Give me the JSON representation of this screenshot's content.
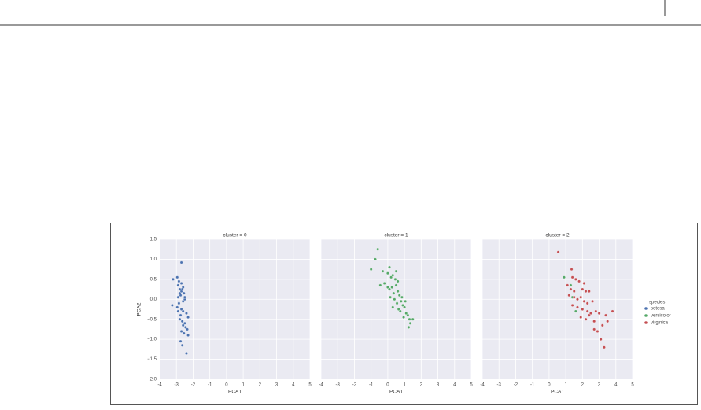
{
  "chart_data": [
    {
      "type": "scatter",
      "title": "cluster = 0",
      "x_label": "PCA1",
      "y_label": "PCA2",
      "legend_title": "species",
      "xlim": [
        -4,
        5
      ],
      "ylim": [
        -2,
        1.5
      ],
      "xticks": [
        -4,
        -3,
        -2,
        -1,
        0,
        1,
        2,
        3,
        4,
        5
      ],
      "yticks": [
        {
          "value": -2,
          "label": "−2.0"
        },
        {
          "value": -1.5,
          "label": "−1.5"
        },
        {
          "value": -1,
          "label": "−1.0"
        },
        {
          "value": -0.5,
          "label": "−0.5"
        },
        {
          "value": 0,
          "label": "0.0"
        },
        0.5,
        {
          "value": 1,
          "label": "1.0"
        },
        1.5
      ],
      "series": [
        {
          "name": "setosa",
          "color": "#4c72b0",
          "x": [
            -2.7,
            -3.2,
            -2.95,
            -2.85,
            -3.25,
            -2.6,
            -2.7,
            -2.8,
            -2.9,
            -2.75,
            -2.65,
            -2.55,
            -2.5,
            -2.85,
            -2.95,
            -2.7,
            -2.6,
            -2.4,
            -2.3,
            -2.75,
            -2.8,
            -2.65,
            -2.5,
            -2.45,
            -2.9,
            -2.7,
            -2.6,
            -2.35,
            -2.3,
            -2.55,
            -2.75,
            -2.65,
            -2.4,
            -2.6,
            -2.7,
            -2.5,
            -2.8,
            -2.9
          ],
          "y": [
            0.92,
            0.5,
            0.55,
            0.45,
            -0.15,
            0.3,
            0.2,
            0.15,
            0.05,
            0.1,
            0.25,
            0.15,
            0.0,
            -0.1,
            -0.2,
            -0.25,
            -0.3,
            -0.35,
            -0.45,
            -0.4,
            -0.5,
            -0.55,
            -0.6,
            -0.7,
            0.35,
            0.4,
            -0.05,
            -0.75,
            -0.9,
            -0.85,
            -1.05,
            -1.15,
            -1.35,
            -0.65,
            -0.8,
            0.05,
            0.25,
            -0.3
          ]
        },
        {
          "name": "versicolor",
          "color": "#55a868",
          "x": [],
          "y": []
        },
        {
          "name": "virginica",
          "color": "#c44e52",
          "x": [],
          "y": []
        }
      ]
    },
    {
      "type": "scatter",
      "title": "cluster = 1",
      "x_label": "PCA1",
      "xlim": [
        -4,
        5
      ],
      "ylim": [
        -2,
        1.5
      ],
      "xticks": [
        -4,
        -3,
        -2,
        -1,
        0,
        1,
        2,
        3,
        4,
        5
      ],
      "yticks": [
        {
          "value": -2,
          "label": "−2.0"
        },
        {
          "value": -1.5,
          "label": "−1.5"
        },
        {
          "value": -1,
          "label": "−1.0"
        },
        {
          "value": -0.5,
          "label": "−0.5"
        },
        {
          "value": 0,
          "label": "0.0"
        },
        0.5,
        {
          "value": 1,
          "label": "1.0"
        },
        1.5
      ],
      "series": [
        {
          "name": "setosa",
          "color": "#4c72b0",
          "x": [],
          "y": []
        },
        {
          "name": "versicolor",
          "color": "#55a868",
          "x": [
            -0.6,
            -0.75,
            -1.0,
            -0.3,
            0.1,
            0.0,
            -0.2,
            0.2,
            0.3,
            0.45,
            0.0,
            0.1,
            0.25,
            0.5,
            0.6,
            0.35,
            0.15,
            0.4,
            0.7,
            0.8,
            0.55,
            0.9,
            1.0,
            0.65,
            0.75,
            1.1,
            1.2,
            0.95,
            1.3,
            1.35,
            1.5,
            0.85,
            1.05,
            0.6,
            -0.45,
            0.3,
            0.5,
            1.25
          ],
          "y": [
            1.25,
            1.0,
            0.75,
            0.7,
            0.8,
            0.65,
            0.4,
            0.55,
            0.6,
            0.5,
            0.3,
            0.25,
            0.3,
            0.35,
            0.2,
            0.15,
            0.05,
            0.0,
            0.1,
            -0.05,
            -0.1,
            -0.15,
            -0.2,
            -0.25,
            -0.3,
            -0.35,
            -0.4,
            -0.45,
            -0.5,
            -0.6,
            -0.5,
            0.05,
            -0.05,
            0.45,
            0.35,
            -0.2,
            0.7,
            -0.7
          ]
        },
        {
          "name": "virginica",
          "color": "#c44e52",
          "x": [],
          "y": []
        }
      ]
    },
    {
      "type": "scatter",
      "title": "cluster = 2",
      "x_label": "PCA1",
      "xlim": [
        -4,
        5
      ],
      "ylim": [
        -2,
        1.5
      ],
      "xticks": [
        -4,
        -3,
        -2,
        -1,
        0,
        1,
        2,
        3,
        4,
        5
      ],
      "yticks": [
        {
          "value": -2,
          "label": "−2.0"
        },
        {
          "value": -1.5,
          "label": "−1.5"
        },
        {
          "value": -1,
          "label": "−1.0"
        },
        {
          "value": -0.5,
          "label": "−0.5"
        },
        {
          "value": 0,
          "label": "0.0"
        },
        0.5,
        {
          "value": 1,
          "label": "1.0"
        },
        1.5
      ],
      "series": [
        {
          "name": "setosa",
          "color": "#4c72b0",
          "x": [],
          "y": []
        },
        {
          "name": "versicolor",
          "color": "#55a868",
          "x": [
            0.9,
            1.3,
            1.4,
            1.6
          ],
          "y": [
            0.55,
            0.35,
            0.05,
            -0.3
          ]
        },
        {
          "name": "virginica",
          "color": "#c44e52",
          "x": [
            0.55,
            1.35,
            1.4,
            1.6,
            1.8,
            1.1,
            1.3,
            1.5,
            2.0,
            2.2,
            2.4,
            1.2,
            1.5,
            1.7,
            1.9,
            2.1,
            2.3,
            2.6,
            1.4,
            1.7,
            2.0,
            2.3,
            2.5,
            2.8,
            3.0,
            1.9,
            2.2,
            2.4,
            2.7,
            3.2,
            3.5,
            3.8,
            2.9,
            3.1,
            3.4,
            3.3,
            2.7,
            2.1
          ],
          "y": [
            1.18,
            0.75,
            0.55,
            0.5,
            0.45,
            0.35,
            0.25,
            0.2,
            0.25,
            0.2,
            0.2,
            0.1,
            0.05,
            0.0,
            0.05,
            -0.05,
            -0.1,
            -0.05,
            -0.15,
            -0.2,
            -0.25,
            -0.3,
            -0.35,
            -0.3,
            -0.35,
            -0.45,
            -0.5,
            -0.4,
            -0.55,
            -0.65,
            -0.55,
            -0.3,
            -0.8,
            -1.0,
            -0.4,
            -1.2,
            -0.75,
            0.4
          ]
        }
      ]
    }
  ]
}
